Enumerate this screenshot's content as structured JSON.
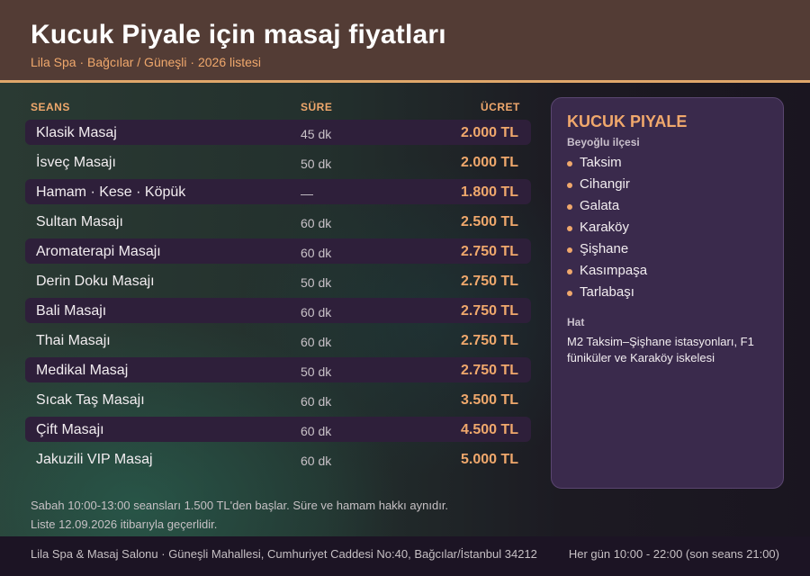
{
  "header": {
    "title": "Kucuk Piyale için masaj fiyatları",
    "subtitle": "Lila Spa · Bağcılar / Güneşli · 2026 listesi"
  },
  "colors": {
    "accent": "#f0a86c",
    "header_bg": "#533c35",
    "card_bg": "#3a2a4c",
    "row_shade": "#2e1f3a"
  },
  "table": {
    "columns": {
      "name": "SEANS",
      "duration": "SÜRE",
      "price": "ÜCRET"
    },
    "rows": [
      {
        "name": "Klasik Masaj",
        "duration": "45 dk",
        "price": "2.000 TL"
      },
      {
        "name": "İsveç Masajı",
        "duration": "50 dk",
        "price": "2.000 TL"
      },
      {
        "name": "Hamam · Kese · Köpük",
        "duration": "—",
        "price": "1.800 TL"
      },
      {
        "name": "Sultan Masajı",
        "duration": "60 dk",
        "price": "2.500 TL"
      },
      {
        "name": "Aromaterapi Masajı",
        "duration": "60 dk",
        "price": "2.750 TL"
      },
      {
        "name": "Derin Doku Masajı",
        "duration": "50 dk",
        "price": "2.750 TL"
      },
      {
        "name": "Bali Masajı",
        "duration": "60 dk",
        "price": "2.750 TL"
      },
      {
        "name": "Thai Masajı",
        "duration": "60 dk",
        "price": "2.750 TL"
      },
      {
        "name": "Medikal Masaj",
        "duration": "50 dk",
        "price": "2.750 TL"
      },
      {
        "name": "Sıcak Taş Masajı",
        "duration": "60 dk",
        "price": "3.500 TL"
      },
      {
        "name": "Çift Masajı",
        "duration": "60 dk",
        "price": "4.500 TL"
      },
      {
        "name": "Jakuzili VIP Masaj",
        "duration": "60 dk",
        "price": "5.000 TL"
      }
    ]
  },
  "notes": [
    "Sabah 10:00-13:00 seansları 1.500 TL'den başlar. Süre ve hamam hakkı aynıdır.",
    "Liste 12.09.2026 itibarıyla geçerlidir."
  ],
  "sidebar": {
    "title": "KUCUK PIYALE",
    "district": "Beyoğlu ilçesi",
    "neighborhoods": [
      "Taksim",
      "Cihangir",
      "Galata",
      "Karaköy",
      "Şişhane",
      "Kasımpaşa",
      "Tarlabaşı"
    ],
    "transit_label": "Hat",
    "transit_text": "M2 Taksim–Şişhane istasyonları, F1 füniküler ve Karaköy iskelesi"
  },
  "footer": {
    "address": "Lila Spa & Masaj Salonu · Güneşli Mahallesi, Cumhuriyet Caddesi No:40, Bağcılar/İstanbul 34212",
    "hours": "Her gün 10:00 - 22:00 (son seans 21:00)"
  }
}
